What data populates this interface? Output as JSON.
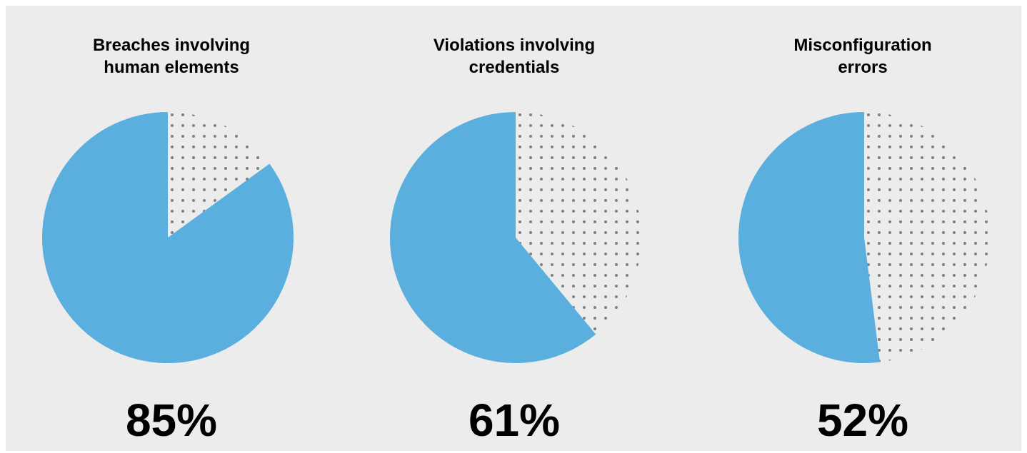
{
  "colors": {
    "background": "#ececec",
    "slice": "#5aafdf",
    "dots": "#808080",
    "text": "#000000"
  },
  "chart_data": [
    {
      "type": "pie",
      "title": "Breaches involving\nhuman elements",
      "value_label": "85%",
      "slices": [
        {
          "name": "",
          "value": 85
        },
        {
          "name": "",
          "value": 15
        }
      ]
    },
    {
      "type": "pie",
      "title": "Violations involving\ncredentials",
      "value_label": "61%",
      "slices": [
        {
          "name": "",
          "value": 61
        },
        {
          "name": "",
          "value": 39
        }
      ]
    },
    {
      "type": "pie",
      "title": "Misconfiguration\nerrors",
      "value_label": "52%",
      "slices": [
        {
          "name": "",
          "value": 52
        },
        {
          "name": "",
          "value": 48
        }
      ]
    }
  ]
}
